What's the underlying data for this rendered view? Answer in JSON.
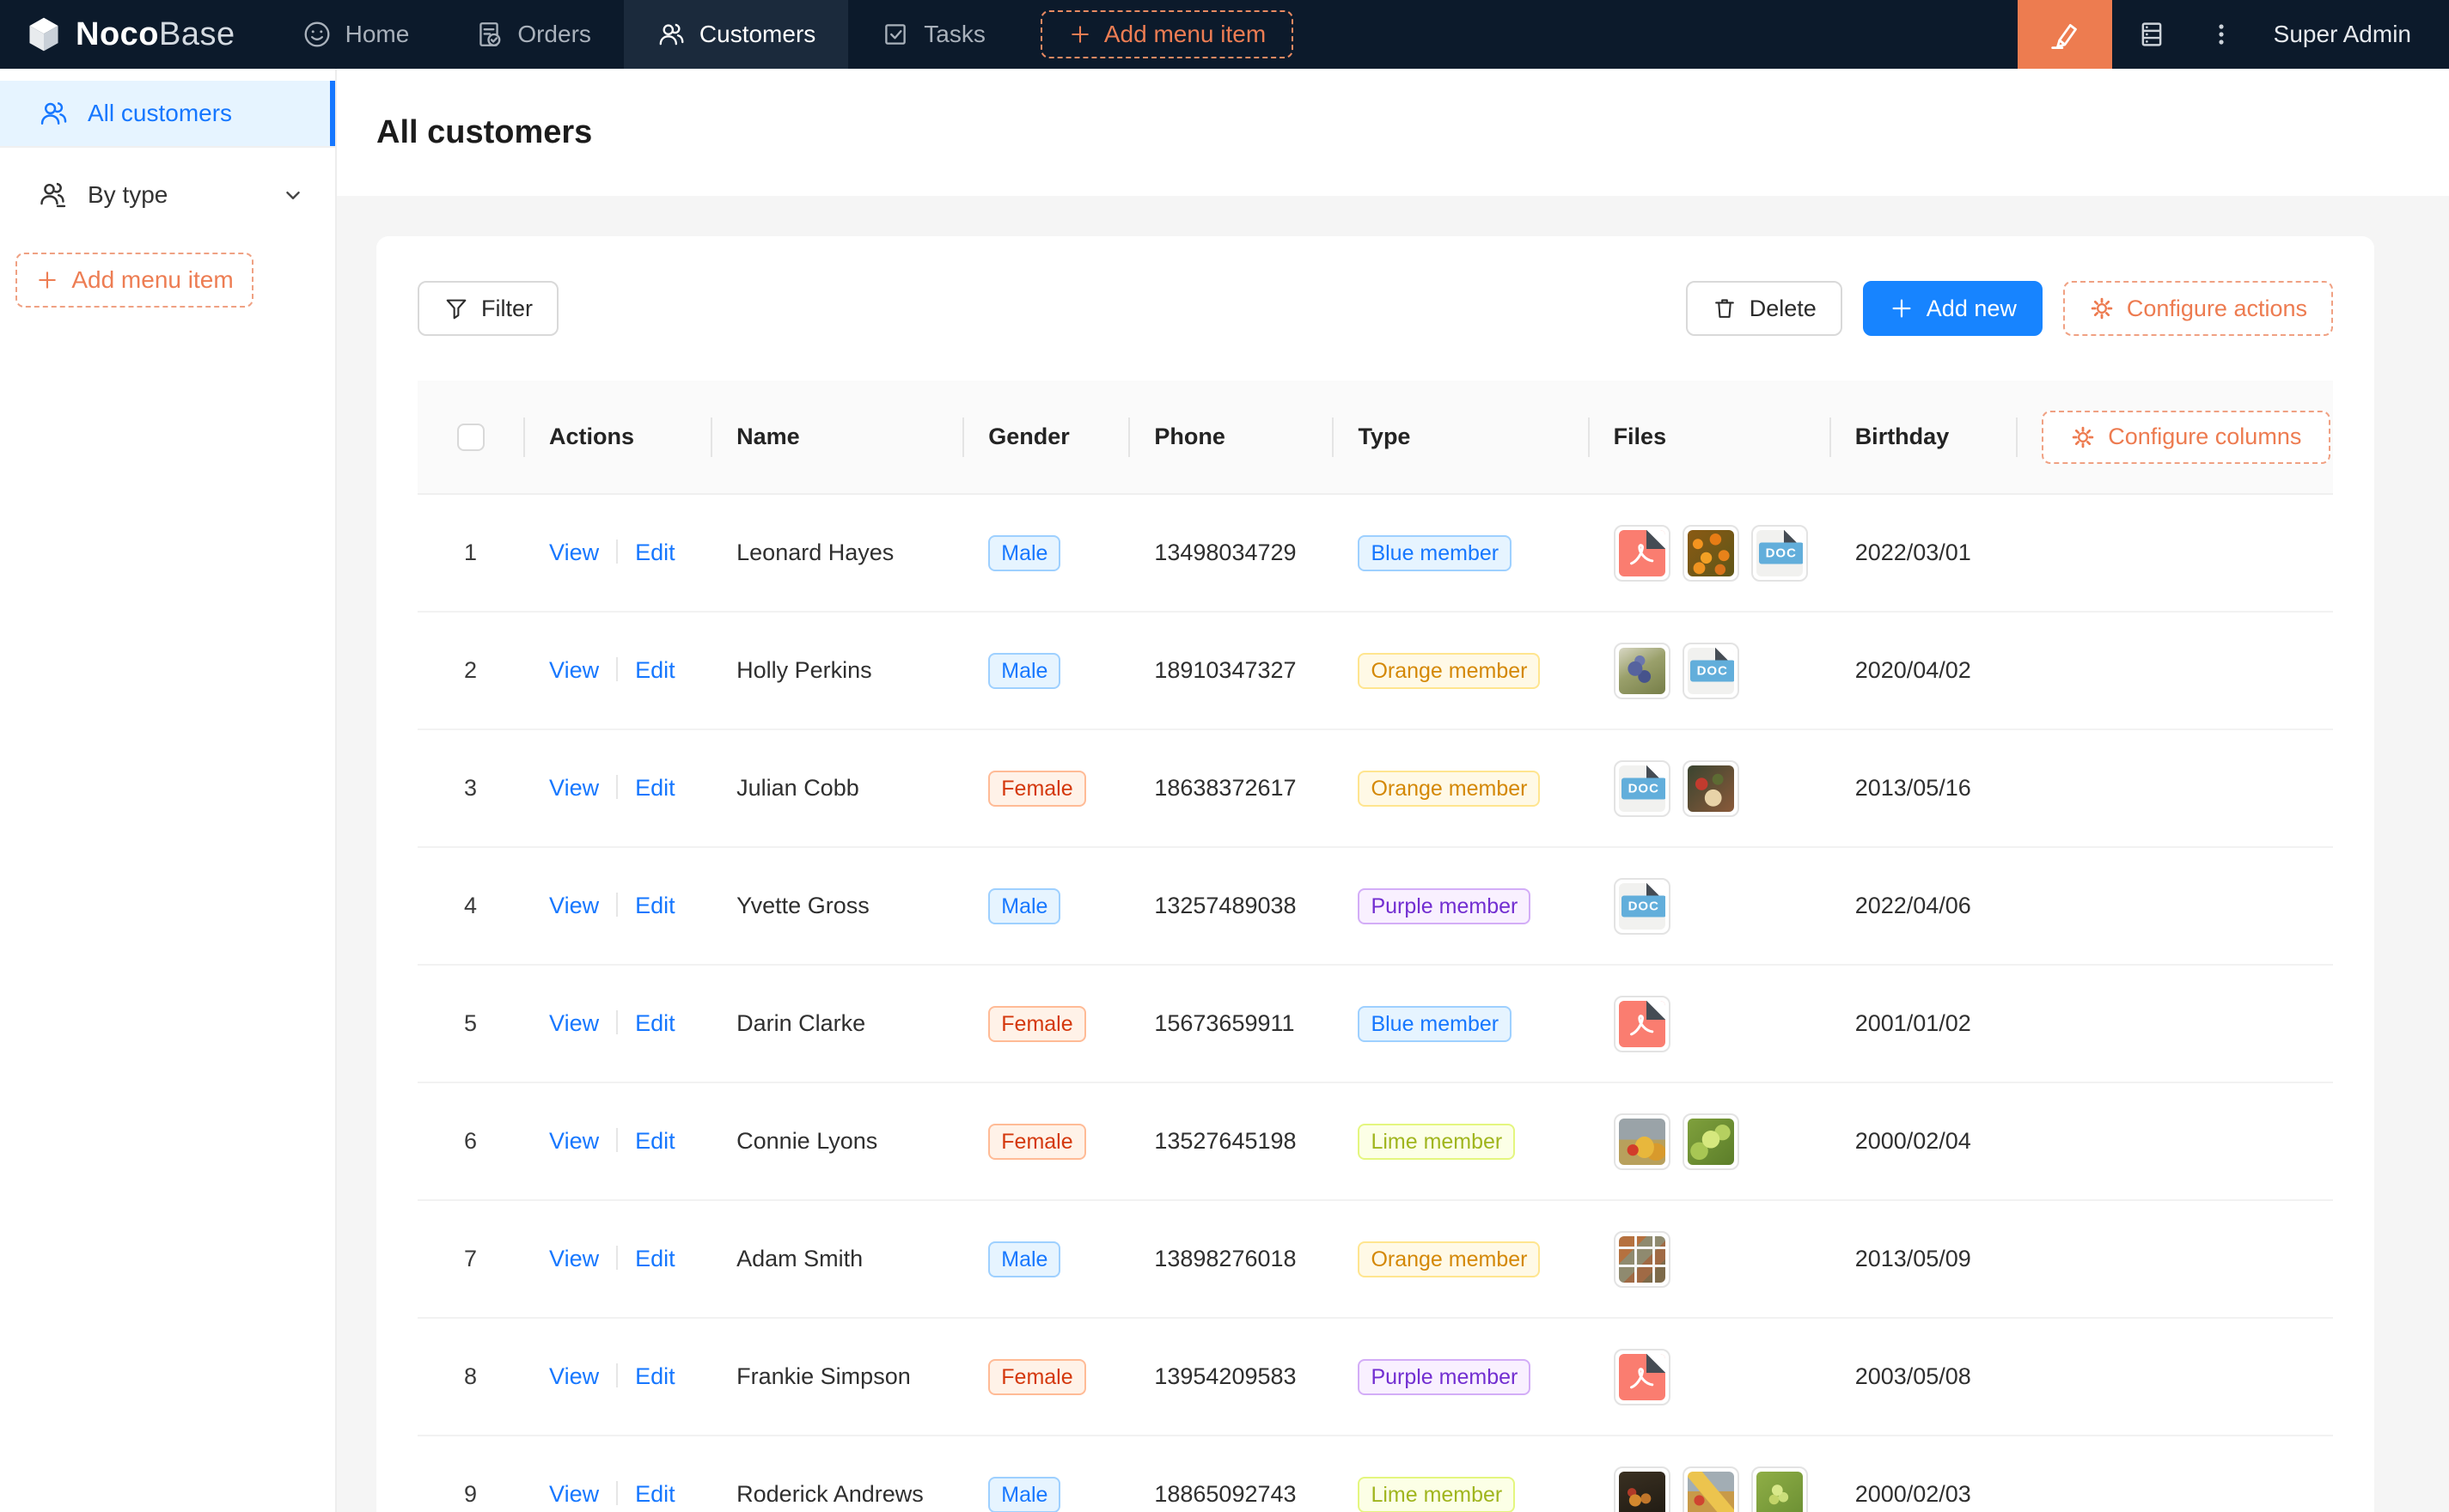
{
  "navbar": {
    "logo_bold": "Noco",
    "logo_light": "Base",
    "items": [
      {
        "label": "Home",
        "icon": "smiley-icon"
      },
      {
        "label": "Orders",
        "icon": "file-check-icon"
      },
      {
        "label": "Customers",
        "icon": "team-icon",
        "active": true
      },
      {
        "label": "Tasks",
        "icon": "check-square-icon"
      }
    ],
    "add_menu_item": "Add menu item",
    "user": "Super Admin"
  },
  "sidebar": {
    "items": [
      {
        "label": "All customers",
        "active": true
      },
      {
        "label": "By type",
        "has_submenu": true
      }
    ],
    "add_menu_item": "Add menu item"
  },
  "page": {
    "title": "All customers"
  },
  "toolbar": {
    "filter": "Filter",
    "delete": "Delete",
    "add_new": "Add new",
    "configure_actions": "Configure actions"
  },
  "table": {
    "columns": [
      "",
      "Actions",
      "Name",
      "Gender",
      "Phone",
      "Type",
      "Files",
      "Birthday"
    ],
    "configure_columns": "Configure columns",
    "actions": [
      "View",
      "Edit"
    ],
    "doc_label": "DOC",
    "rows": [
      {
        "index": 1,
        "name": "Leonard Hayes",
        "gender": "Male",
        "phone": "13498034729",
        "type": "Blue member",
        "files": [
          {
            "kind": "pdf"
          },
          {
            "kind": "photo",
            "name": "orange-flowers"
          },
          {
            "kind": "doc"
          }
        ],
        "birthday": "2022/03/01"
      },
      {
        "index": 2,
        "name": "Holly Perkins",
        "gender": "Male",
        "phone": "18910347327",
        "type": "Orange member",
        "files": [
          {
            "kind": "photo",
            "name": "blue-grapes"
          },
          {
            "kind": "doc"
          }
        ],
        "birthday": "2020/04/02"
      },
      {
        "index": 3,
        "name": "Julian Cobb",
        "gender": "Female",
        "phone": "18638372617",
        "type": "Orange member",
        "files": [
          {
            "kind": "doc"
          },
          {
            "kind": "photo",
            "name": "food-platter"
          }
        ],
        "birthday": "2013/05/16"
      },
      {
        "index": 4,
        "name": "Yvette Gross",
        "gender": "Male",
        "phone": "13257489038",
        "type": "Purple member",
        "files": [
          {
            "kind": "doc"
          }
        ],
        "birthday": "2022/04/06"
      },
      {
        "index": 5,
        "name": "Darin Clarke",
        "gender": "Female",
        "phone": "15673659911",
        "type": "Blue member",
        "files": [
          {
            "kind": "pdf"
          }
        ],
        "birthday": "2001/01/02"
      },
      {
        "index": 6,
        "name": "Connie Lyons",
        "gender": "Female",
        "phone": "13527645198",
        "type": "Lime member",
        "files": [
          {
            "kind": "photo",
            "name": "fruit-still-life"
          },
          {
            "kind": "photo",
            "name": "lettuce"
          }
        ],
        "birthday": "2000/02/04"
      },
      {
        "index": 7,
        "name": "Adam Smith",
        "gender": "Male",
        "phone": "13898276018",
        "type": "Orange member",
        "files": [
          {
            "kind": "photo",
            "name": "food-collage"
          }
        ],
        "birthday": "2013/05/09"
      },
      {
        "index": 8,
        "name": "Frankie Simpson",
        "gender": "Female",
        "phone": "13954209583",
        "type": "Purple member",
        "files": [
          {
            "kind": "pdf"
          }
        ],
        "birthday": "2003/05/08"
      },
      {
        "index": 9,
        "name": "Roderick Andrews",
        "gender": "Male",
        "phone": "18865092743",
        "type": "Lime member",
        "files": [
          {
            "kind": "photo",
            "name": "dark-fruit-bowl"
          },
          {
            "kind": "photo",
            "name": "banana-fruit"
          },
          {
            "kind": "photo",
            "name": "green-grapes"
          }
        ],
        "birthday": "2000/02/03"
      }
    ]
  },
  "palette": {
    "navbar_bg": "#0c1a2b",
    "navbar_active_bg": "#1b2a3c",
    "accent_orange": "#ed7c50",
    "primary_blue": "#1677ff",
    "sidebar_active_bg": "#e6f4ff",
    "content_bg": "#f5f5f5",
    "tag_blue_text": "#1677ff",
    "tag_volcano_text": "#d4380d",
    "tag_gold_text": "#d48806",
    "tag_purple_text": "#722ed1",
    "tag_lime_text": "#a0b51e"
  }
}
